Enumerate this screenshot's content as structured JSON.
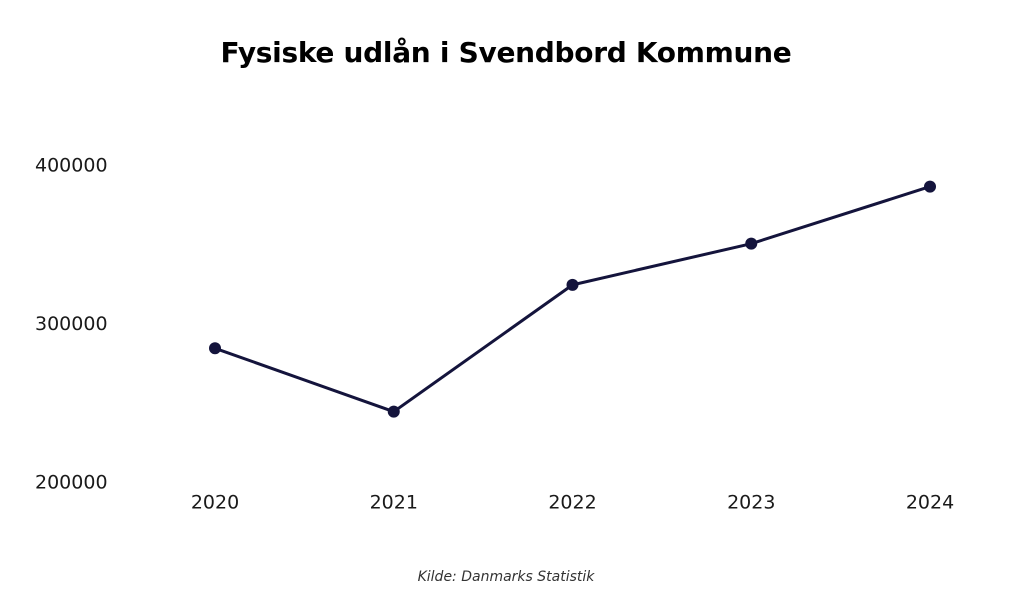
{
  "chart_data": {
    "type": "line",
    "title": "Fysiske udlån i Svendbord Kommune",
    "source": "Kilde: Danmarks Statistik",
    "x": [
      "2020",
      "2021",
      "2022",
      "2023",
      "2024"
    ],
    "series": [
      {
        "values": [
          285000,
          245000,
          325000,
          351000,
          387000
        ]
      }
    ],
    "yticks": [
      200000,
      300000,
      400000
    ],
    "ylim": [
      200000,
      400000
    ],
    "grid": false,
    "line_color": "#14143c"
  }
}
